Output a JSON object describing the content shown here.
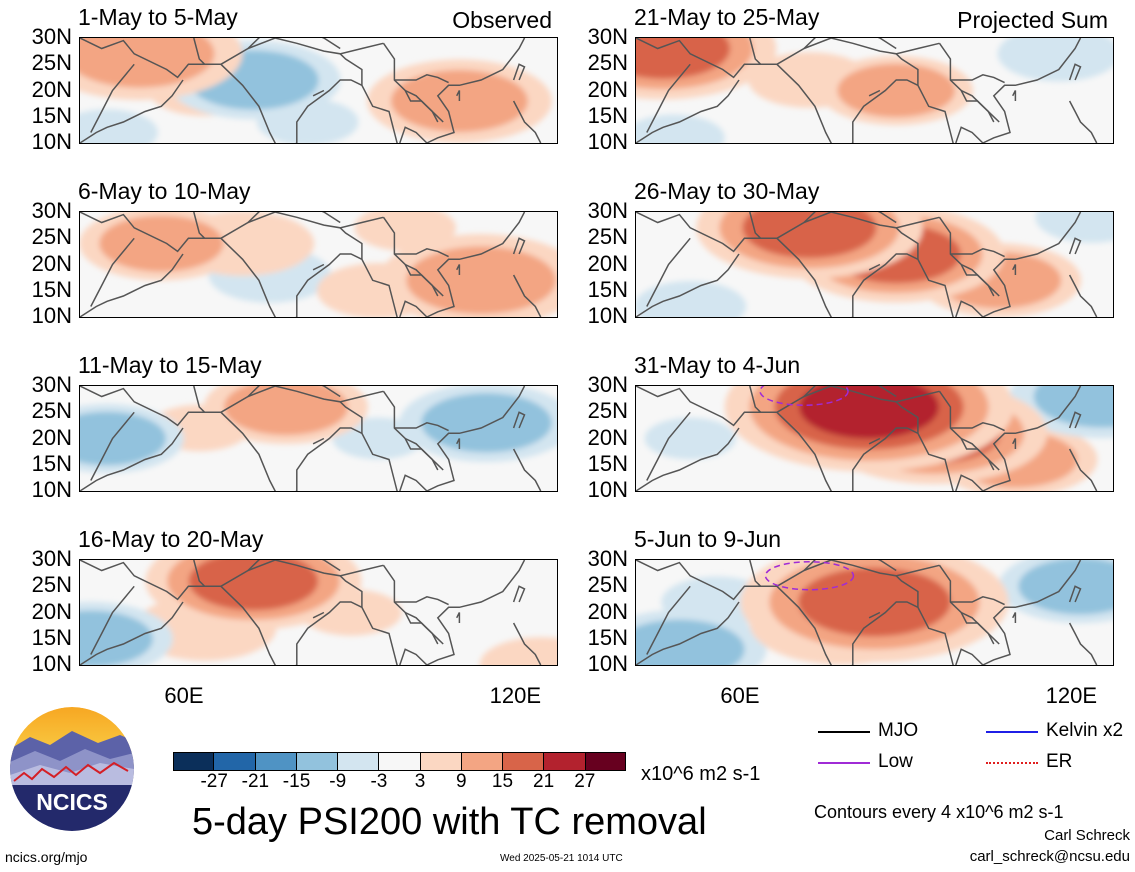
{
  "panels": [
    {
      "title": "1-May to 5-May",
      "tag": "Observed"
    },
    {
      "title": "6-May to 10-May",
      "tag": ""
    },
    {
      "title": "11-May to 15-May",
      "tag": ""
    },
    {
      "title": "16-May to 20-May",
      "tag": ""
    },
    {
      "title": "21-May to 25-May",
      "tag": "Projected Sum"
    },
    {
      "title": "26-May to 30-May",
      "tag": ""
    },
    {
      "title": "31-May to 4-Jun",
      "tag": ""
    },
    {
      "title": "5-Jun to 9-Jun",
      "tag": ""
    }
  ],
  "axes": {
    "y_ticks": [
      "30N",
      "25N",
      "20N",
      "15N",
      "10N"
    ],
    "x_ticks": [
      "60E",
      "120E"
    ]
  },
  "colorbar": {
    "colors": [
      "#0b2f5a",
      "#2266a8",
      "#4f93c4",
      "#92c2dd",
      "#d3e5f0",
      "#f7f7f7",
      "#fbd7c2",
      "#f3a583",
      "#d86449",
      "#b3222e",
      "#67001f"
    ],
    "labels": [
      "-27",
      "-21",
      "-15",
      "-9",
      "-3",
      "3",
      "9",
      "15",
      "21",
      "27"
    ],
    "units": "x10^6 m2 s-1"
  },
  "legend": {
    "items": [
      {
        "label": "MJO",
        "color": "#000000",
        "style": "solid"
      },
      {
        "label": "Kelvin x2",
        "color": "#1f1fe6",
        "style": "solid"
      },
      {
        "label": "Low",
        "color": "#a02bd6",
        "style": "solid"
      },
      {
        "label": "ER",
        "color": "#e01f1f",
        "style": "dotted"
      }
    ],
    "contour_note": "Contours every 4 x10^6 m2 s-1"
  },
  "footer": {
    "title": "5-day PSI200 with TC removal",
    "logo_text": "NCICS",
    "site": "ncics.org/mjo",
    "timestamp": "Wed 2025-05-21 1014 UTC",
    "author": "Carl Schreck",
    "email": "carl_schreck@ncsu.edu"
  },
  "chart_data": {
    "type": "heatmap",
    "variable": "5-day PSI200 with TC removal",
    "units": "x10^6 m2 s-1",
    "lon_range": [
      40,
      128
    ],
    "lat_range": [
      10,
      30
    ],
    "x_ticks": [
      "60E",
      "120E"
    ],
    "y_ticks": [
      "30N",
      "25N",
      "20N",
      "15N",
      "10N"
    ],
    "color_levels": [
      -27,
      -21,
      -15,
      -9,
      -3,
      3,
      9,
      15,
      21,
      27
    ],
    "contour_interval": 4,
    "panels": [
      {
        "period": "1-May to 5-May",
        "type": "Observed",
        "features": [
          {
            "lon": 51,
            "lat": 27,
            "value": 14
          },
          {
            "lon": 72,
            "lat": 22,
            "value": -11
          },
          {
            "lon": 110,
            "lat": 18,
            "value": 12
          },
          {
            "lon": 63,
            "lat": 20,
            "value": 5
          },
          {
            "lon": 45,
            "lat": 12,
            "value": -4
          },
          {
            "lon": 82,
            "lat": 14,
            "value": -4
          }
        ]
      },
      {
        "period": "6-May to 10-May",
        "type": "Observed",
        "features": [
          {
            "lon": 55,
            "lat": 24,
            "value": 10
          },
          {
            "lon": 70,
            "lat": 24,
            "value": 8
          },
          {
            "lon": 75,
            "lat": 18,
            "value": -6
          },
          {
            "lon": 114,
            "lat": 17,
            "value": 14
          },
          {
            "lon": 95,
            "lat": 15,
            "value": 6
          },
          {
            "lon": 100,
            "lat": 27,
            "value": 4
          }
        ]
      },
      {
        "period": "11-May to 15-May",
        "type": "Observed",
        "features": [
          {
            "lon": 45,
            "lat": 20,
            "value": -9
          },
          {
            "lon": 78,
            "lat": 26,
            "value": 10
          },
          {
            "lon": 115,
            "lat": 23,
            "value": -11
          },
          {
            "lon": 62,
            "lat": 22,
            "value": 4
          },
          {
            "lon": 95,
            "lat": 20,
            "value": -3
          }
        ]
      },
      {
        "period": "16-May to 20-May",
        "type": "Observed",
        "features": [
          {
            "lon": 72,
            "lat": 26,
            "value": 15
          },
          {
            "lon": 63,
            "lat": 17,
            "value": 8
          },
          {
            "lon": 42,
            "lat": 15,
            "value": -10
          },
          {
            "lon": 125,
            "lat": 10,
            "value": 6
          },
          {
            "lon": 90,
            "lat": 20,
            "value": 4
          }
        ]
      },
      {
        "period": "21-May to 25-May",
        "type": "Projected Sum",
        "features": [
          {
            "lon": 45,
            "lat": 28,
            "value": 16
          },
          {
            "lon": 88,
            "lat": 20,
            "value": 9
          },
          {
            "lon": 72,
            "lat": 22,
            "value": 6
          },
          {
            "lon": 118,
            "lat": 27,
            "value": -6
          },
          {
            "lon": 47,
            "lat": 11,
            "value": -4
          }
        ]
      },
      {
        "period": "26-May to 30-May",
        "type": "Projected Sum",
        "features": [
          {
            "lon": 72,
            "lat": 27,
            "value": 16
          },
          {
            "lon": 88,
            "lat": 22,
            "value": 15
          },
          {
            "lon": 107,
            "lat": 17,
            "value": 10
          },
          {
            "lon": 50,
            "lat": 12,
            "value": -5
          },
          {
            "lon": 124,
            "lat": 29,
            "value": -5
          }
        ]
      },
      {
        "period": "31-May to 4-Jun",
        "type": "Projected Sum",
        "features": [
          {
            "lon": 83,
            "lat": 26,
            "value": 22
          },
          {
            "lon": 95,
            "lat": 21,
            "value": 16
          },
          {
            "lon": 110,
            "lat": 16,
            "value": 10
          },
          {
            "lon": 126,
            "lat": 28,
            "value": -12
          },
          {
            "lon": 50,
            "lat": 20,
            "value": -3
          }
        ]
      },
      {
        "period": "5-Jun to 9-Jun",
        "type": "Projected Sum",
        "features": [
          {
            "lon": 84,
            "lat": 22,
            "value": 20
          },
          {
            "lon": 78,
            "lat": 18,
            "value": 12
          },
          {
            "lon": 48,
            "lat": 13,
            "value": -11
          },
          {
            "lon": 122,
            "lat": 25,
            "value": -10
          },
          {
            "lon": 55,
            "lat": 22,
            "value": -5
          }
        ]
      }
    ],
    "low_contours": [
      {
        "period": "31-May to 4-Jun",
        "center": [
          71,
          29
        ]
      },
      {
        "period": "5-Jun to 9-Jun",
        "center": [
          72,
          27
        ]
      }
    ]
  }
}
